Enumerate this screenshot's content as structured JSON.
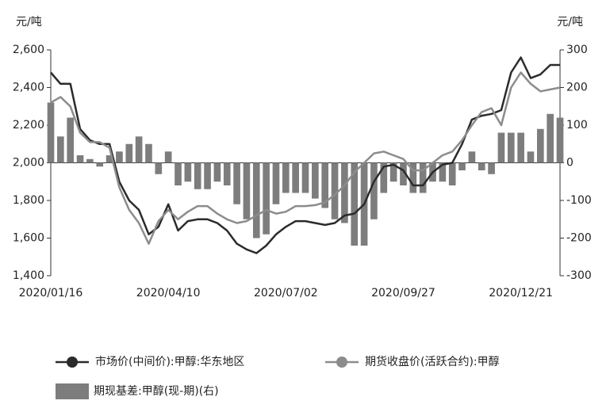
{
  "chart_data": {
    "type": "combo",
    "ylabel": "元/吨",
    "y2label": "元/吨",
    "categories": [
      "2020/01/16",
      null,
      null,
      null,
      null,
      null,
      null,
      null,
      null,
      null,
      null,
      null,
      "2020/04/10",
      null,
      null,
      null,
      null,
      null,
      null,
      null,
      null,
      null,
      null,
      null,
      "2020/07/02",
      null,
      null,
      null,
      null,
      null,
      null,
      null,
      null,
      null,
      null,
      null,
      "2020/09/27",
      null,
      null,
      null,
      null,
      null,
      null,
      null,
      null,
      null,
      null,
      null,
      "2020/12/21",
      null,
      null,
      null,
      null
    ],
    "ylim": [
      1400,
      2600
    ],
    "yticks": [
      {
        "value": 1400,
        "label": "1,400"
      },
      {
        "value": 1600,
        "label": "1,600"
      },
      {
        "value": 1800,
        "label": "1,800"
      },
      {
        "value": 2000,
        "label": "2,000"
      },
      {
        "value": 2200,
        "label": "2,200"
      },
      {
        "value": 2400,
        "label": "2,400"
      },
      {
        "value": 2600,
        "label": "2,600"
      }
    ],
    "y2lim": [
      -300,
      300
    ],
    "y2ticks": [
      -300,
      -200,
      -100,
      0,
      100,
      200,
      300
    ],
    "series": [
      {
        "name": "期现基差:甲醇(现-期)(右)",
        "kind": "bar",
        "axis": "y2",
        "color": "#7d7d7d",
        "values": [
          160,
          70,
          120,
          20,
          10,
          -10,
          20,
          30,
          50,
          70,
          50,
          -30,
          30,
          -60,
          -50,
          -70,
          -70,
          -50,
          -60,
          -110,
          -150,
          -200,
          -190,
          -110,
          -80,
          -80,
          -80,
          -95,
          -120,
          -150,
          -160,
          -220,
          -220,
          -150,
          -80,
          -50,
          -60,
          -80,
          -80,
          -50,
          -50,
          -60,
          -20,
          30,
          -20,
          -30,
          80,
          80,
          80,
          30,
          90,
          130,
          120
        ]
      },
      {
        "name": "市场价(中间价):甲醇:华东地区",
        "kind": "line",
        "color": "#2b2b2b",
        "values": [
          2480,
          2420,
          2420,
          2180,
          2120,
          2100,
          2100,
          1900,
          1800,
          1750,
          1620,
          1660,
          1780,
          1640,
          1690,
          1700,
          1700,
          1680,
          1640,
          1570,
          1540,
          1520,
          1560,
          1620,
          1660,
          1690,
          1690,
          1680,
          1670,
          1680,
          1720,
          1730,
          1780,
          1900,
          1980,
          1990,
          1960,
          1880,
          1880,
          1950,
          1990,
          2000,
          2100,
          2230,
          2250,
          2260,
          2280,
          2480,
          2560,
          2450,
          2470,
          2520,
          2520
        ]
      },
      {
        "name": "期货收盘价(活跃合约):甲醇",
        "kind": "line",
        "color": "#8c8c8c",
        "values": [
          2320,
          2350,
          2300,
          2160,
          2110,
          2110,
          2080,
          1870,
          1750,
          1680,
          1570,
          1690,
          1750,
          1700,
          1740,
          1770,
          1770,
          1730,
          1700,
          1680,
          1690,
          1720,
          1750,
          1730,
          1740,
          1770,
          1770,
          1775,
          1790,
          1830,
          1880,
          1950,
          2000,
          2050,
          2060,
          2040,
          2020,
          1960,
          1960,
          2000,
          2040,
          2060,
          2120,
          2200,
          2270,
          2290,
          2200,
          2400,
          2480,
          2420,
          2380,
          2390,
          2400
        ]
      }
    ]
  }
}
